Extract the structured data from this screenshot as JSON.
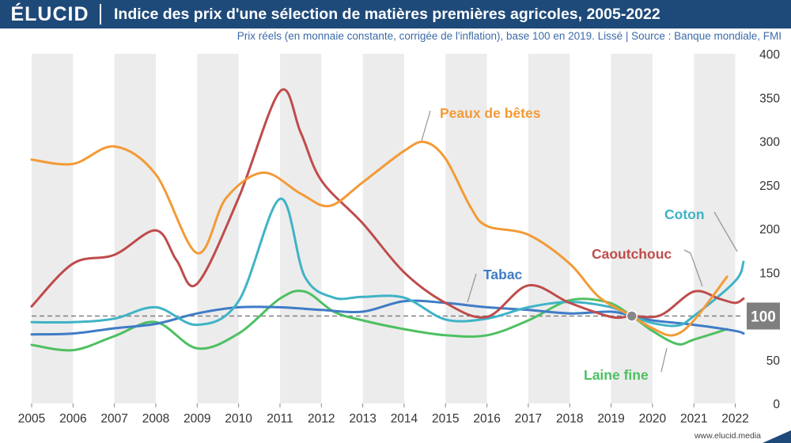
{
  "header": {
    "logo": "ÉLUCID",
    "title": "Indice des prix d'une sélection de matières premières agricoles, 2005-2022",
    "subtitle": "Prix réels (en monnaie constante, corrigée de l'inflation), base 100 en 2019. Lissé  |  Source : Banque mondiale, FMI"
  },
  "footer": {
    "website": "www.elucid.media"
  },
  "chart_data": {
    "type": "line",
    "title": "Indice des prix d'une sélection de matières premières agricoles, 2005-2022",
    "xlabel": "",
    "ylabel": "",
    "xlim": [
      2005,
      2022.2
    ],
    "ylim": [
      0,
      400
    ],
    "x_ticks": [
      "2005",
      "2006",
      "2007",
      "2008",
      "2009",
      "2010",
      "2011",
      "2012",
      "2013",
      "2014",
      "2015",
      "2016",
      "2017",
      "2018",
      "2019",
      "2020",
      "2021",
      "2022"
    ],
    "y_ticks": [
      "0",
      "50",
      "100",
      "150",
      "200",
      "250",
      "300",
      "350",
      "400"
    ],
    "grid": "alternating vertical bands",
    "reference_line": {
      "value": 100,
      "label": "100",
      "color": "#808080"
    },
    "series": [
      {
        "name": "Peaux de bêtes",
        "color": "#f39a36",
        "points": [
          [
            2005,
            279
          ],
          [
            2006,
            274
          ],
          [
            2007,
            294
          ],
          [
            2008,
            262
          ],
          [
            2009,
            172
          ],
          [
            2009.7,
            235
          ],
          [
            2010.6,
            264
          ],
          [
            2011.5,
            240
          ],
          [
            2012.2,
            226
          ],
          [
            2013,
            253
          ],
          [
            2014,
            289
          ],
          [
            2014.5,
            299
          ],
          [
            2015,
            280
          ],
          [
            2015.6,
            225
          ],
          [
            2016,
            203
          ],
          [
            2017,
            193
          ],
          [
            2018,
            160
          ],
          [
            2018.7,
            122
          ],
          [
            2019.5,
            100
          ],
          [
            2020,
            86
          ],
          [
            2020.5,
            78
          ],
          [
            2021,
            95
          ],
          [
            2021.8,
            145
          ]
        ]
      },
      {
        "name": "Caoutchouc",
        "color": "#bf4b4b",
        "points": [
          [
            2005,
            111
          ],
          [
            2006,
            160
          ],
          [
            2007,
            170
          ],
          [
            2008,
            198
          ],
          [
            2008.5,
            164
          ],
          [
            2009,
            137
          ],
          [
            2010,
            235
          ],
          [
            2011,
            357
          ],
          [
            2011.5,
            310
          ],
          [
            2012,
            255
          ],
          [
            2013,
            206
          ],
          [
            2014,
            150
          ],
          [
            2015,
            115
          ],
          [
            2016,
            99
          ],
          [
            2017,
            135
          ],
          [
            2018,
            115
          ],
          [
            2019,
            99
          ],
          [
            2019.5,
            100
          ],
          [
            2020.2,
            101
          ],
          [
            2021,
            128
          ],
          [
            2021.6,
            120
          ],
          [
            2022,
            115
          ],
          [
            2022.2,
            120
          ]
        ]
      },
      {
        "name": "Coton",
        "color": "#3fb3c6",
        "points": [
          [
            2005,
            93
          ],
          [
            2006,
            93
          ],
          [
            2007,
            97
          ],
          [
            2008,
            110
          ],
          [
            2009,
            90
          ],
          [
            2010,
            117
          ],
          [
            2011,
            234
          ],
          [
            2011.6,
            145
          ],
          [
            2012.3,
            121
          ],
          [
            2013,
            122
          ],
          [
            2014,
            121
          ],
          [
            2015,
            96
          ],
          [
            2016,
            97
          ],
          [
            2017,
            110
          ],
          [
            2018,
            116
          ],
          [
            2019,
            110
          ],
          [
            2019.5,
            100
          ],
          [
            2020,
            92
          ],
          [
            2020.6,
            89
          ],
          [
            2021,
            100
          ],
          [
            2022,
            140
          ],
          [
            2022.2,
            162
          ]
        ]
      },
      {
        "name": "Tabac",
        "color": "#3f7cc6",
        "points": [
          [
            2005,
            79
          ],
          [
            2006,
            80
          ],
          [
            2007,
            86
          ],
          [
            2008,
            91
          ],
          [
            2009,
            103
          ],
          [
            2010,
            110
          ],
          [
            2011,
            110
          ],
          [
            2012,
            107
          ],
          [
            2013,
            105
          ],
          [
            2014,
            117
          ],
          [
            2015,
            115
          ],
          [
            2016,
            110
          ],
          [
            2017,
            107
          ],
          [
            2018,
            103
          ],
          [
            2019,
            105
          ],
          [
            2019.5,
            100
          ],
          [
            2020,
            95
          ],
          [
            2021,
            90
          ],
          [
            2022,
            83
          ],
          [
            2022.2,
            80
          ]
        ]
      },
      {
        "name": "Laine fine",
        "color": "#4ec062",
        "points": [
          [
            2005,
            67
          ],
          [
            2006,
            61
          ],
          [
            2007,
            77
          ],
          [
            2008,
            93
          ],
          [
            2009,
            63
          ],
          [
            2010,
            80
          ],
          [
            2011,
            120
          ],
          [
            2011.6,
            128
          ],
          [
            2012.3,
            105
          ],
          [
            2013,
            95
          ],
          [
            2014,
            85
          ],
          [
            2015,
            78
          ],
          [
            2016,
            78
          ],
          [
            2017,
            95
          ],
          [
            2018,
            118
          ],
          [
            2018.9,
            116
          ],
          [
            2019.5,
            100
          ],
          [
            2020,
            83
          ],
          [
            2020.6,
            68
          ],
          [
            2021,
            73
          ],
          [
            2021.8,
            85
          ]
        ]
      }
    ],
    "annotations": [
      {
        "text": "Peaux de bêtes",
        "series": "Peaux de bêtes"
      },
      {
        "text": "Caoutchouc",
        "series": "Caoutchouc"
      },
      {
        "text": "Coton",
        "series": "Coton"
      },
      {
        "text": "Tabac",
        "series": "Tabac"
      },
      {
        "text": "Laine fine",
        "series": "Laine fine"
      }
    ]
  }
}
